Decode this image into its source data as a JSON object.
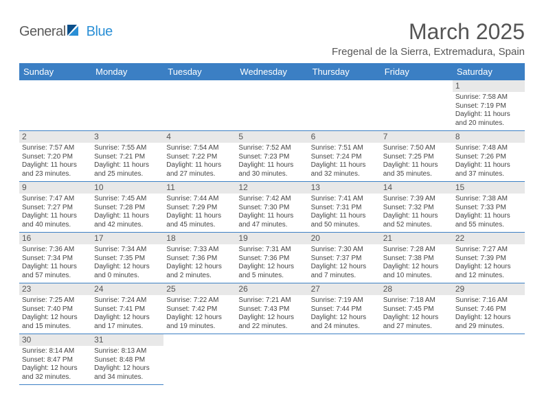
{
  "brand": {
    "part1": "General",
    "part2": "Blue"
  },
  "title": "March 2025",
  "location": "Fregenal de la Sierra, Extremadura, Spain",
  "colors": {
    "header_bg": "#3b7fc4",
    "header_text": "#ffffff",
    "cell_border": "#3b7fc4",
    "daynum_bg": "#e8e8e8",
    "text": "#555555",
    "body_text": "#444444",
    "logo_blue": "#1f6fb2"
  },
  "day_headers": [
    "Sunday",
    "Monday",
    "Tuesday",
    "Wednesday",
    "Thursday",
    "Friday",
    "Saturday"
  ],
  "labels": {
    "sunrise": "Sunrise:",
    "sunset": "Sunset:",
    "daylight": "Daylight:"
  },
  "weeks": [
    [
      null,
      null,
      null,
      null,
      null,
      null,
      {
        "n": "1",
        "rise": "7:58 AM",
        "set": "7:19 PM",
        "dl": "11 hours and 20 minutes."
      }
    ],
    [
      {
        "n": "2",
        "rise": "7:57 AM",
        "set": "7:20 PM",
        "dl": "11 hours and 23 minutes."
      },
      {
        "n": "3",
        "rise": "7:55 AM",
        "set": "7:21 PM",
        "dl": "11 hours and 25 minutes."
      },
      {
        "n": "4",
        "rise": "7:54 AM",
        "set": "7:22 PM",
        "dl": "11 hours and 27 minutes."
      },
      {
        "n": "5",
        "rise": "7:52 AM",
        "set": "7:23 PM",
        "dl": "11 hours and 30 minutes."
      },
      {
        "n": "6",
        "rise": "7:51 AM",
        "set": "7:24 PM",
        "dl": "11 hours and 32 minutes."
      },
      {
        "n": "7",
        "rise": "7:50 AM",
        "set": "7:25 PM",
        "dl": "11 hours and 35 minutes."
      },
      {
        "n": "8",
        "rise": "7:48 AM",
        "set": "7:26 PM",
        "dl": "11 hours and 37 minutes."
      }
    ],
    [
      {
        "n": "9",
        "rise": "7:47 AM",
        "set": "7:27 PM",
        "dl": "11 hours and 40 minutes."
      },
      {
        "n": "10",
        "rise": "7:45 AM",
        "set": "7:28 PM",
        "dl": "11 hours and 42 minutes."
      },
      {
        "n": "11",
        "rise": "7:44 AM",
        "set": "7:29 PM",
        "dl": "11 hours and 45 minutes."
      },
      {
        "n": "12",
        "rise": "7:42 AM",
        "set": "7:30 PM",
        "dl": "11 hours and 47 minutes."
      },
      {
        "n": "13",
        "rise": "7:41 AM",
        "set": "7:31 PM",
        "dl": "11 hours and 50 minutes."
      },
      {
        "n": "14",
        "rise": "7:39 AM",
        "set": "7:32 PM",
        "dl": "11 hours and 52 minutes."
      },
      {
        "n": "15",
        "rise": "7:38 AM",
        "set": "7:33 PM",
        "dl": "11 hours and 55 minutes."
      }
    ],
    [
      {
        "n": "16",
        "rise": "7:36 AM",
        "set": "7:34 PM",
        "dl": "11 hours and 57 minutes."
      },
      {
        "n": "17",
        "rise": "7:34 AM",
        "set": "7:35 PM",
        "dl": "12 hours and 0 minutes."
      },
      {
        "n": "18",
        "rise": "7:33 AM",
        "set": "7:36 PM",
        "dl": "12 hours and 2 minutes."
      },
      {
        "n": "19",
        "rise": "7:31 AM",
        "set": "7:36 PM",
        "dl": "12 hours and 5 minutes."
      },
      {
        "n": "20",
        "rise": "7:30 AM",
        "set": "7:37 PM",
        "dl": "12 hours and 7 minutes."
      },
      {
        "n": "21",
        "rise": "7:28 AM",
        "set": "7:38 PM",
        "dl": "12 hours and 10 minutes."
      },
      {
        "n": "22",
        "rise": "7:27 AM",
        "set": "7:39 PM",
        "dl": "12 hours and 12 minutes."
      }
    ],
    [
      {
        "n": "23",
        "rise": "7:25 AM",
        "set": "7:40 PM",
        "dl": "12 hours and 15 minutes."
      },
      {
        "n": "24",
        "rise": "7:24 AM",
        "set": "7:41 PM",
        "dl": "12 hours and 17 minutes."
      },
      {
        "n": "25",
        "rise": "7:22 AM",
        "set": "7:42 PM",
        "dl": "12 hours and 19 minutes."
      },
      {
        "n": "26",
        "rise": "7:21 AM",
        "set": "7:43 PM",
        "dl": "12 hours and 22 minutes."
      },
      {
        "n": "27",
        "rise": "7:19 AM",
        "set": "7:44 PM",
        "dl": "12 hours and 24 minutes."
      },
      {
        "n": "28",
        "rise": "7:18 AM",
        "set": "7:45 PM",
        "dl": "12 hours and 27 minutes."
      },
      {
        "n": "29",
        "rise": "7:16 AM",
        "set": "7:46 PM",
        "dl": "12 hours and 29 minutes."
      }
    ],
    [
      {
        "n": "30",
        "rise": "8:14 AM",
        "set": "8:47 PM",
        "dl": "12 hours and 32 minutes."
      },
      {
        "n": "31",
        "rise": "8:13 AM",
        "set": "8:48 PM",
        "dl": "12 hours and 34 minutes."
      },
      null,
      null,
      null,
      null,
      null
    ]
  ]
}
